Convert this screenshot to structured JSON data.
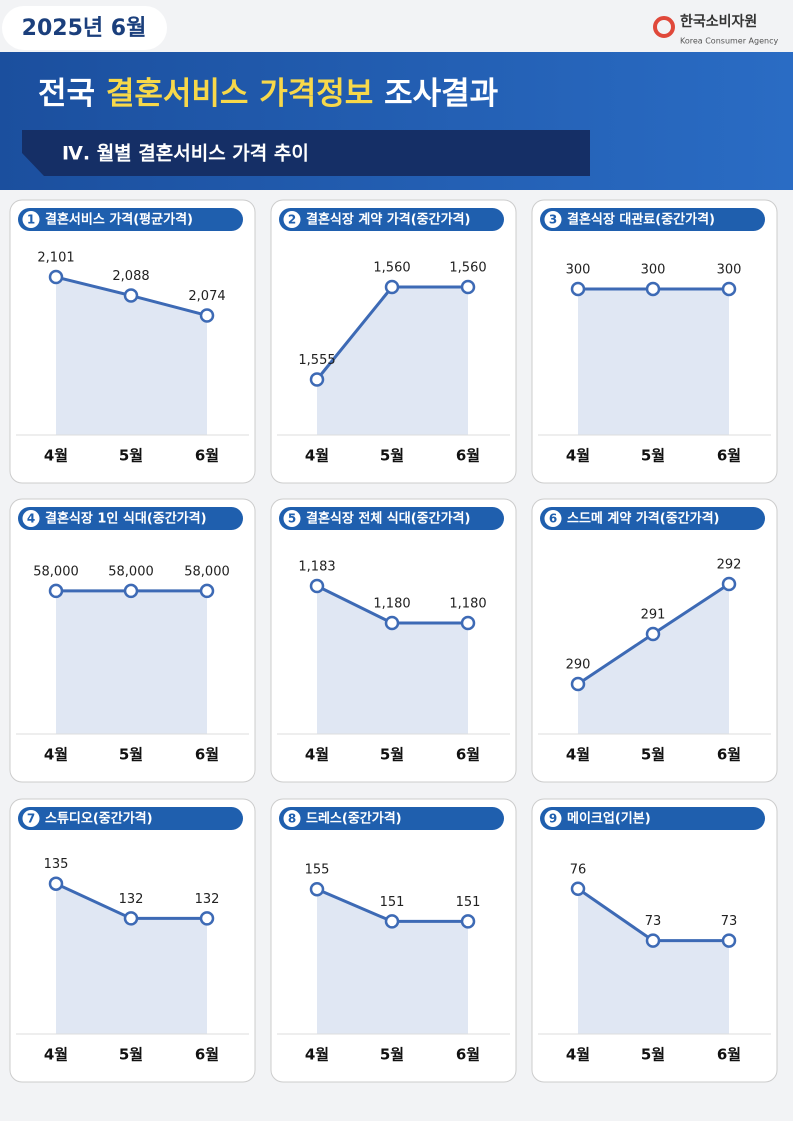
{
  "header": {
    "date": "2025년 6월",
    "logo_ko": "한국소비자원",
    "logo_en": "Korea Consumer Agency",
    "title_parts": [
      "전국 ",
      "결혼서비스 가격정보",
      " 조사결과"
    ],
    "section": "Ⅳ. 월별 결혼서비스 가격 추이"
  },
  "chart_data": [
    {
      "type": "line",
      "number": 1,
      "title": "결혼서비스 가격(평균가격)",
      "categories": [
        "4월",
        "5월",
        "6월"
      ],
      "values": [
        2101,
        2088,
        2074
      ],
      "value_labels": [
        "2,101",
        "2,088",
        "2,074"
      ],
      "ylim": [
        1990,
        2120
      ],
      "color": "#3d6ab5"
    },
    {
      "type": "line",
      "number": 2,
      "title": "결혼식장 계약 가격(중간가격)",
      "categories": [
        "4월",
        "5월",
        "6월"
      ],
      "values": [
        1555,
        1560,
        1560
      ],
      "value_labels": [
        "1,555",
        "1,560",
        "1,560"
      ],
      "ylim": [
        1552,
        1562
      ],
      "color": "#3d6ab5"
    },
    {
      "type": "line",
      "number": 3,
      "title": "결혼식장 대관료(중간가격)",
      "categories": [
        "4월",
        "5월",
        "6월"
      ],
      "values": [
        300,
        300,
        300
      ],
      "ylim": [
        0,
        380
      ],
      "color": "#3d6ab5"
    },
    {
      "type": "line",
      "number": 4,
      "title": "결혼식장 1인 식대(중간가격)",
      "categories": [
        "4월",
        "5월",
        "6월"
      ],
      "values": [
        58000,
        58000,
        58000
      ],
      "value_labels": [
        "58,000",
        "58,000",
        "58,000"
      ],
      "ylim": [
        0,
        75000
      ],
      "color": "#3d6ab5"
    },
    {
      "type": "line",
      "number": 5,
      "title": "결혼식장 전체 식대(중간가격)",
      "categories": [
        "4월",
        "5월",
        "6월"
      ],
      "values": [
        1183,
        1180,
        1180
      ],
      "value_labels": [
        "1,183",
        "1,180",
        "1,180"
      ],
      "ylim": [
        1171,
        1186
      ],
      "color": "#3d6ab5"
    },
    {
      "type": "line",
      "number": 6,
      "title": "스드메 계약 가격(중간가격)",
      "categories": [
        "4월",
        "5월",
        "6월"
      ],
      "values": [
        290,
        291,
        292
      ],
      "ylim": [
        289,
        292.7
      ],
      "color": "#3d6ab5"
    },
    {
      "type": "line",
      "number": 7,
      "title": "스튜디오(중간가격)",
      "categories": [
        "4월",
        "5월",
        "6월"
      ],
      "values": [
        135,
        132,
        132
      ],
      "ylim": [
        122,
        138
      ],
      "color": "#3d6ab5"
    },
    {
      "type": "line",
      "number": 8,
      "title": "드레스(중간가격)",
      "categories": [
        "4월",
        "5월",
        "6월"
      ],
      "values": [
        155,
        151,
        151
      ],
      "ylim": [
        137,
        160
      ],
      "color": "#3d6ab5"
    },
    {
      "type": "line",
      "number": 9,
      "title": "메이크업(기본)",
      "categories": [
        "4월",
        "5월",
        "6월"
      ],
      "values": [
        76,
        73,
        73
      ],
      "ylim": [
        67.6,
        78.3
      ],
      "color": "#3d6ab5"
    }
  ]
}
